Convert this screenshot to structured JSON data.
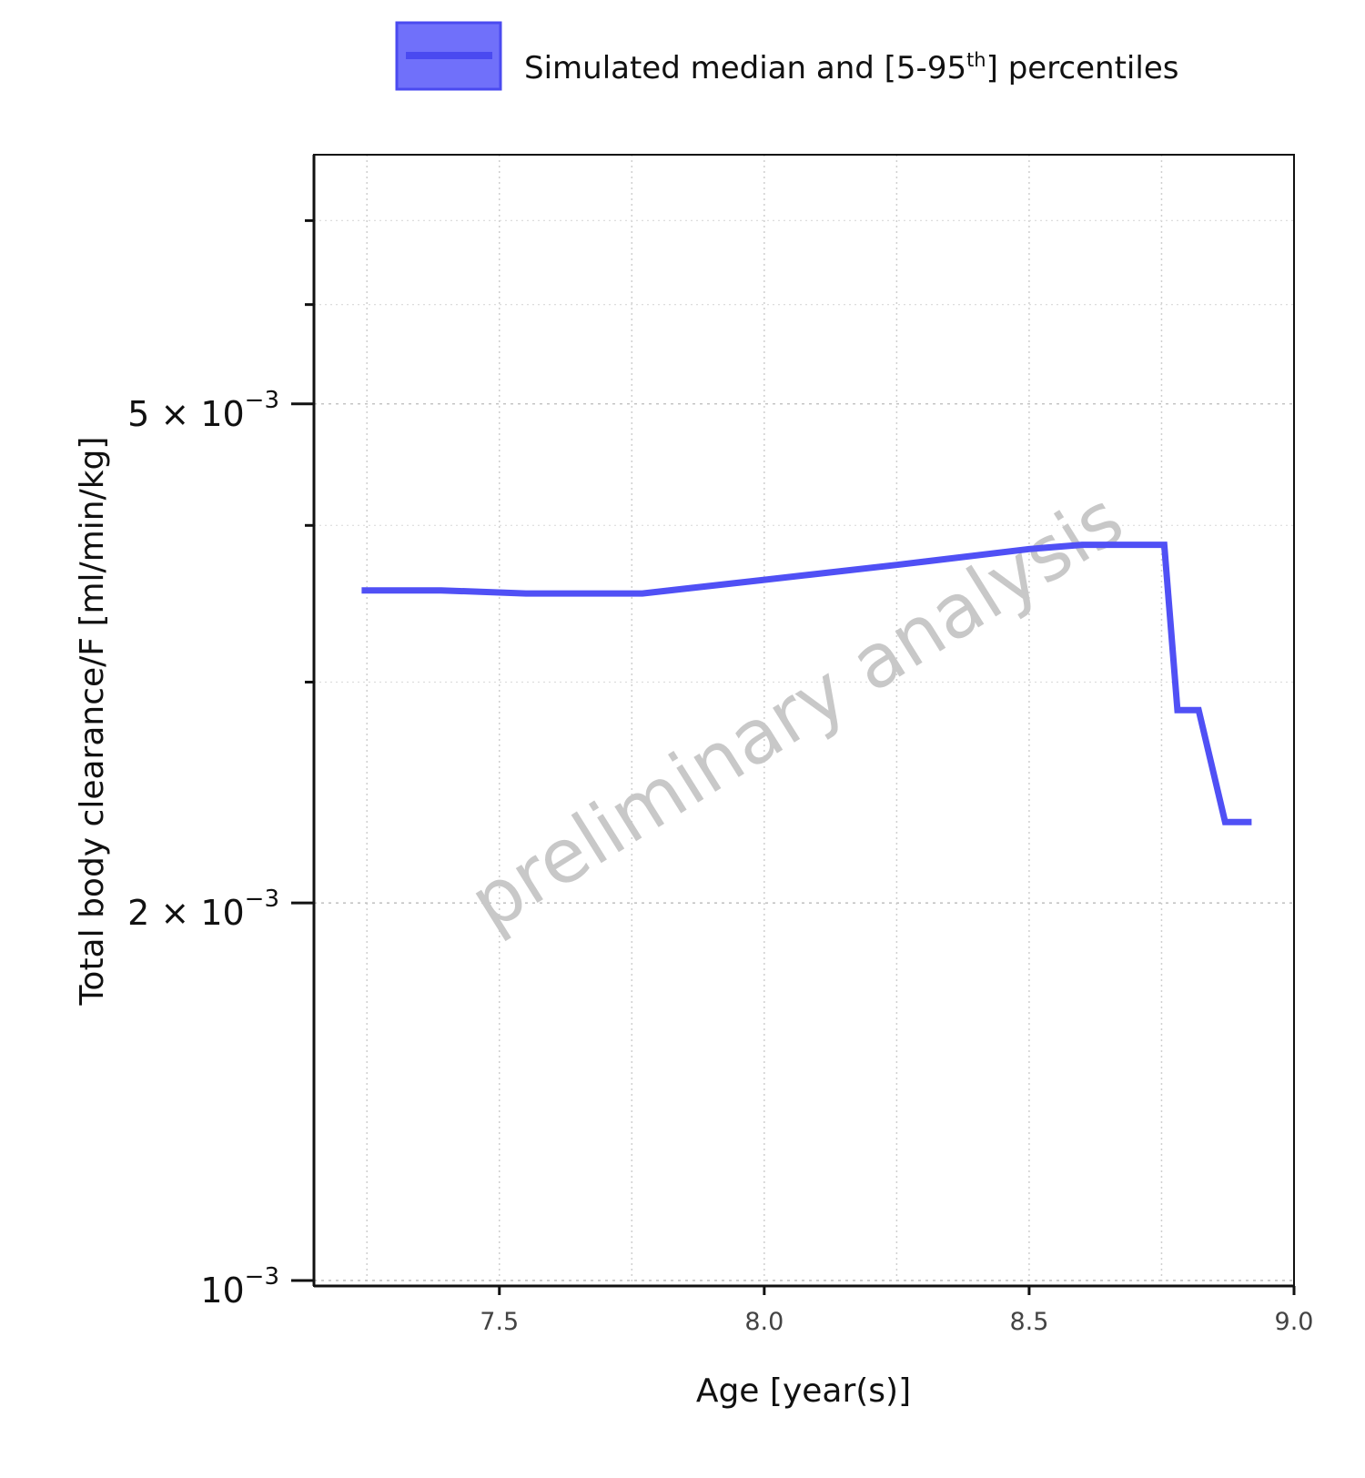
{
  "chart_data": {
    "type": "line",
    "legend": {
      "placement": "top-center",
      "label_main": "Simulated median and [5-95",
      "label_sup": "th",
      "label_end": "] percentiles"
    },
    "watermark": "preliminary analysis",
    "xlabel": "Age [year(s)]",
    "ylabel": "Total body clearance/F [ml/min/kg]",
    "xlim": [
      7.15,
      9.0
    ],
    "ylim": [
      0.00099,
      0.0079
    ],
    "yscale": "log",
    "grid": true,
    "x_ticks": [
      {
        "value": 7.5,
        "label": "7.5"
      },
      {
        "value": 8.0,
        "label": "8.0"
      },
      {
        "value": 8.5,
        "label": "8.5"
      },
      {
        "value": 9.0,
        "label": "9.0"
      }
    ],
    "y_ticks": [
      {
        "value": 0.001,
        "base": "10",
        "exp": "−3"
      },
      {
        "value": 0.002,
        "base": "2 × 10",
        "exp": "−3"
      },
      {
        "value": 0.005,
        "base": "5 × 10",
        "exp": "−3"
      }
    ],
    "series": [
      {
        "name": "Simulated median and [5-95th] percentiles",
        "color": "#5050f5",
        "x": [
          7.24,
          7.39,
          7.55,
          7.77,
          8.0,
          8.25,
          8.5,
          8.6,
          8.755,
          8.78,
          8.82,
          8.87,
          8.92
        ],
        "y": [
          0.00355,
          0.00355,
          0.00353,
          0.00353,
          0.00362,
          0.00372,
          0.00383,
          0.00386,
          0.00386,
          0.00285,
          0.00285,
          0.00232,
          0.00232
        ]
      }
    ]
  }
}
